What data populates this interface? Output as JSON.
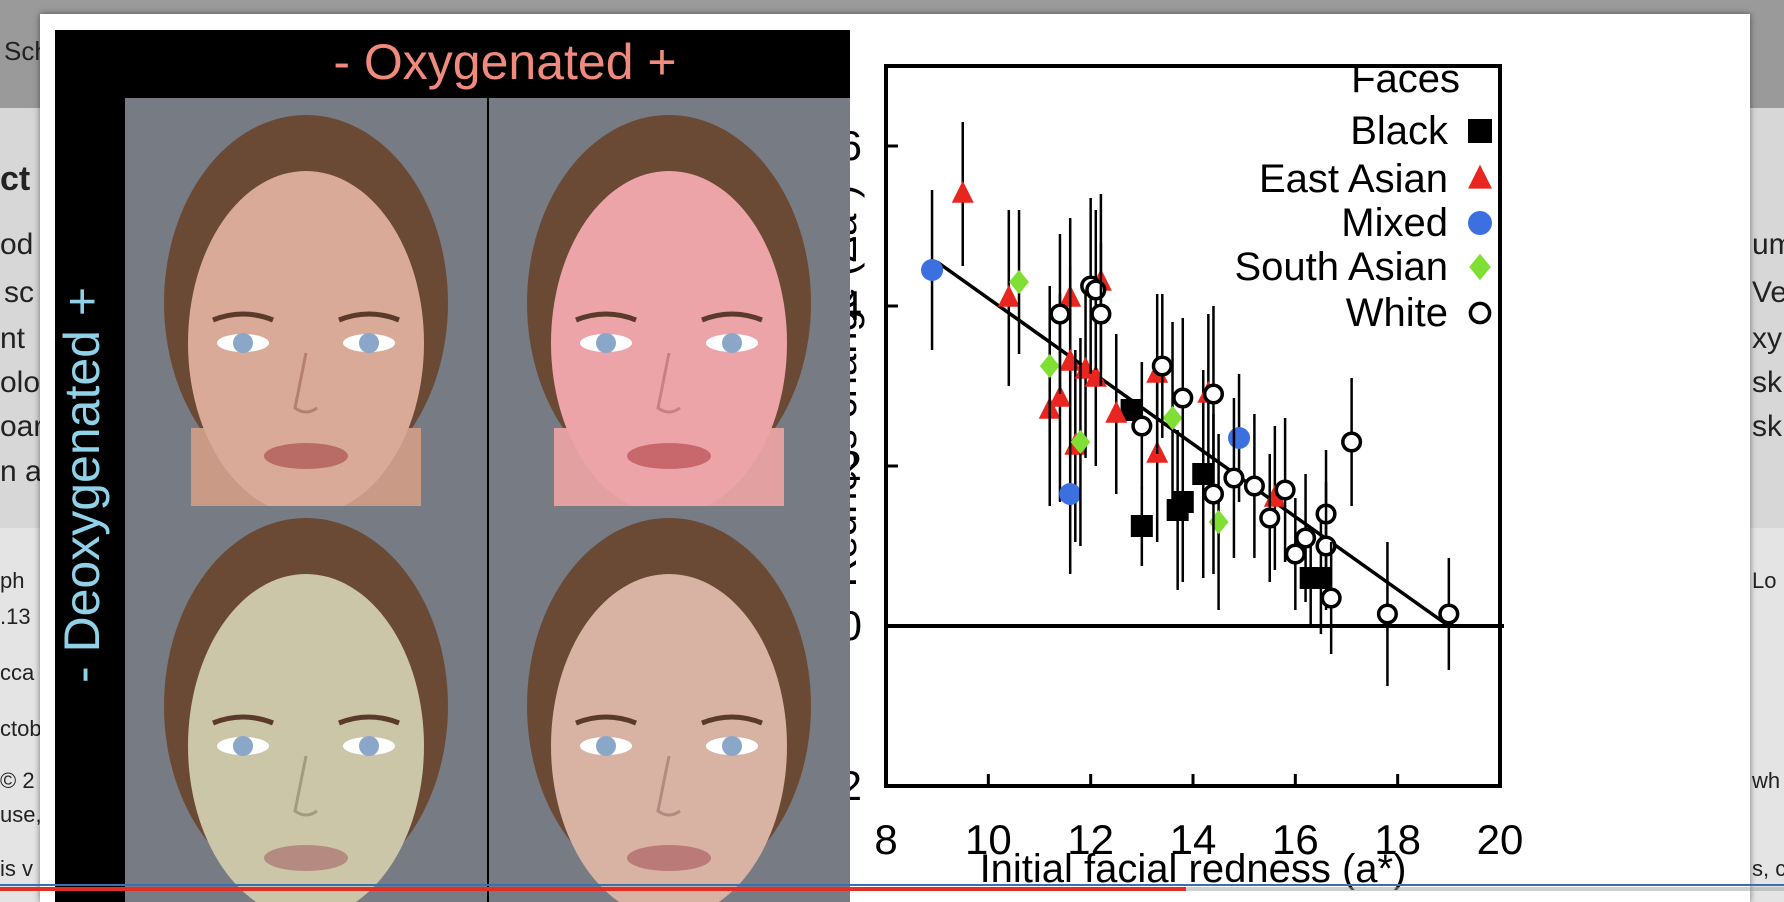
{
  "background_page": {
    "snippets_left": [
      "Sch",
      "ct",
      "od",
      "sc",
      "nt",
      "olo",
      "oar",
      "n a",
      "ph",
      ".13",
      "cca",
      "ctob",
      "© 2",
      "use,",
      "is v"
    ],
    "snippets_right": [
      "um",
      "Ve",
      "xy",
      "sk",
      "sk",
      "Lo",
      "wh",
      "s, c"
    ]
  },
  "photo_panel": {
    "top_label": "- Oxygenated +",
    "side_label": "- Deoxygenated +"
  },
  "video": {
    "progress": 0.665
  },
  "colors": {
    "black_series": "#000000",
    "east_asian_series": "#e8261f",
    "mixed_series": "#3c6fe0",
    "south_asian_series": "#7fe033",
    "white_series": "#ffffff",
    "oxygenated_label": "#f08a7c",
    "deoxygenated_label": "#8fd1e8",
    "progress_fill": "#e52d27"
  },
  "chart_data": {
    "type": "scatter",
    "xlabel": "Initial facial redness (a*)",
    "ylabel": "Redness change (Δa*)",
    "xlim": [
      8,
      20
    ],
    "ylim": [
      -2,
      7
    ],
    "xticks": [
      "8",
      "10",
      "12",
      "14",
      "16",
      "18",
      "20"
    ],
    "yticks": [
      "-2",
      "0",
      "2",
      "4",
      "6"
    ],
    "grid": false,
    "legend_title": "Faces",
    "legend_position": "top-right",
    "zero_line": true,
    "trend_line": {
      "x": [
        9.0,
        19.0
      ],
      "y": [
        4.55,
        0.0
      ]
    },
    "series": [
      {
        "name": "Black",
        "marker": "square",
        "points": [
          {
            "x": 12.8,
            "y": 2.7,
            "err": 0.0
          },
          {
            "x": 13.0,
            "y": 1.25,
            "err": 0.5
          },
          {
            "x": 13.7,
            "y": 1.45,
            "err": 1.0
          },
          {
            "x": 13.8,
            "y": 1.55,
            "err": 1.0
          },
          {
            "x": 14.2,
            "y": 1.9,
            "err": 1.3
          },
          {
            "x": 16.3,
            "y": 0.6,
            "err": 0.6
          },
          {
            "x": 16.5,
            "y": 0.6,
            "err": 0.7
          }
        ]
      },
      {
        "name": "East Asian",
        "marker": "triangle",
        "points": [
          {
            "x": 9.5,
            "y": 5.4,
            "err": 0.9
          },
          {
            "x": 10.4,
            "y": 4.1,
            "err": 1.1
          },
          {
            "x": 11.2,
            "y": 2.7,
            "err": 1.2
          },
          {
            "x": 11.4,
            "y": 2.85,
            "err": 1.3
          },
          {
            "x": 11.6,
            "y": 4.1,
            "err": 1.0
          },
          {
            "x": 11.6,
            "y": 3.3,
            "err": 1.2
          },
          {
            "x": 11.7,
            "y": 2.25,
            "err": 1.2
          },
          {
            "x": 11.9,
            "y": 3.2,
            "err": 1.1
          },
          {
            "x": 12.1,
            "y": 3.1,
            "err": 1.1
          },
          {
            "x": 12.2,
            "y": 4.3,
            "err": 1.1
          },
          {
            "x": 12.5,
            "y": 2.65,
            "err": 1.0
          },
          {
            "x": 13.3,
            "y": 2.15,
            "err": 1.1
          },
          {
            "x": 13.3,
            "y": 3.15,
            "err": 1.0
          },
          {
            "x": 14.3,
            "y": 2.9,
            "err": 1.0
          },
          {
            "x": 15.6,
            "y": 1.6,
            "err": 0.9
          }
        ]
      },
      {
        "name": "Mixed",
        "marker": "circle",
        "points": [
          {
            "x": 8.9,
            "y": 4.45,
            "err": 1.0
          },
          {
            "x": 11.6,
            "y": 1.65,
            "err": 1.0
          },
          {
            "x": 14.9,
            "y": 2.35,
            "err": 0.8
          }
        ]
      },
      {
        "name": "South Asian",
        "marker": "diamond",
        "points": [
          {
            "x": 10.6,
            "y": 4.3,
            "err": 0.9
          },
          {
            "x": 11.2,
            "y": 3.25,
            "err": 1.0
          },
          {
            "x": 11.8,
            "y": 2.3,
            "err": 1.3
          },
          {
            "x": 13.6,
            "y": 2.6,
            "err": 1.2
          },
          {
            "x": 14.5,
            "y": 1.3,
            "err": 1.1
          }
        ]
      },
      {
        "name": "White",
        "marker": "open-circle",
        "points": [
          {
            "x": 11.4,
            "y": 3.9,
            "err": 1.0
          },
          {
            "x": 12.0,
            "y": 4.25,
            "err": 1.1
          },
          {
            "x": 12.1,
            "y": 4.2,
            "err": 1.0
          },
          {
            "x": 12.2,
            "y": 3.9,
            "err": 0.9
          },
          {
            "x": 13.0,
            "y": 2.5,
            "err": 0.8
          },
          {
            "x": 13.4,
            "y": 3.25,
            "err": 0.9
          },
          {
            "x": 13.8,
            "y": 2.85,
            "err": 1.0
          },
          {
            "x": 14.4,
            "y": 2.9,
            "err": 1.1
          },
          {
            "x": 14.4,
            "y": 1.65,
            "err": 1.0
          },
          {
            "x": 14.8,
            "y": 1.85,
            "err": 1.0
          },
          {
            "x": 15.2,
            "y": 1.75,
            "err": 0.9
          },
          {
            "x": 15.5,
            "y": 1.35,
            "err": 0.8
          },
          {
            "x": 15.8,
            "y": 1.7,
            "err": 0.9
          },
          {
            "x": 16.0,
            "y": 0.9,
            "err": 0.7
          },
          {
            "x": 16.2,
            "y": 1.1,
            "err": 0.8
          },
          {
            "x": 16.6,
            "y": 1.4,
            "err": 0.8
          },
          {
            "x": 16.6,
            "y": 1.0,
            "err": 0.8
          },
          {
            "x": 16.7,
            "y": 0.35,
            "err": 0.7
          },
          {
            "x": 17.1,
            "y": 2.3,
            "err": 0.8
          },
          {
            "x": 17.8,
            "y": 0.15,
            "err": 0.9
          },
          {
            "x": 19.0,
            "y": 0.15,
            "err": 0.7
          }
        ]
      }
    ]
  }
}
